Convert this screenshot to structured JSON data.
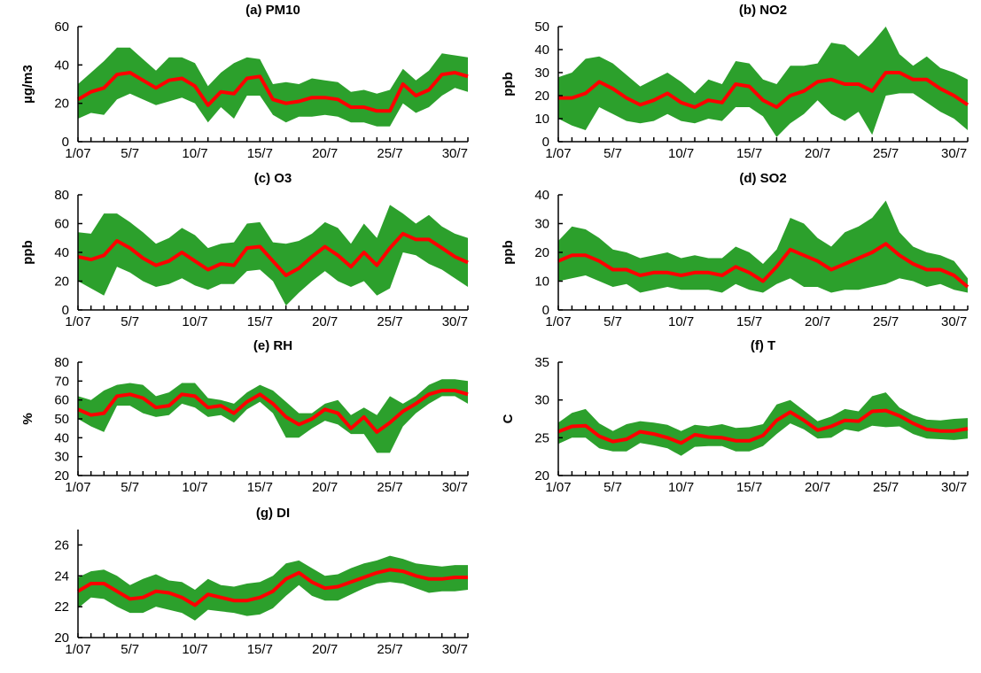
{
  "chart_data": [
    {
      "type": "area",
      "title": "(a)  PM10",
      "ylabel": "µg/m3",
      "ylim": [
        0,
        60
      ],
      "yticks": [
        0,
        20,
        40,
        60
      ],
      "xtick_labels": [
        "1/07",
        "5/7",
        "10/7",
        "15/7",
        "20/7",
        "25/7",
        "30/7"
      ],
      "xtick_days": [
        1,
        5,
        10,
        15,
        20,
        25,
        30
      ],
      "x": [
        1,
        2,
        3,
        4,
        5,
        6,
        7,
        8,
        9,
        10,
        11,
        12,
        13,
        14,
        15,
        16,
        17,
        18,
        19,
        20,
        21,
        22,
        23,
        24,
        25,
        26,
        27,
        28,
        29,
        30,
        31
      ],
      "series": [
        {
          "role": "mean",
          "color": "#ff0000",
          "values": [
            22,
            26,
            28,
            35,
            36,
            32,
            28,
            32,
            33,
            29,
            19,
            26,
            25,
            33,
            34,
            22,
            20,
            21,
            23,
            23,
            22,
            18,
            18,
            16,
            16,
            30,
            24,
            27,
            35,
            36,
            34
          ]
        },
        {
          "role": "upper",
          "values": [
            30,
            36,
            42,
            49,
            49,
            43,
            37,
            44,
            44,
            41,
            29,
            36,
            41,
            44,
            43,
            30,
            31,
            30,
            33,
            32,
            31,
            26,
            27,
            25,
            27,
            38,
            32,
            37,
            46,
            45,
            44
          ]
        },
        {
          "role": "lower",
          "values": [
            12,
            15,
            14,
            22,
            25,
            22,
            19,
            21,
            23,
            20,
            10,
            18,
            12,
            24,
            24,
            14,
            10,
            13,
            13,
            14,
            13,
            10,
            10,
            8,
            8,
            20,
            15,
            18,
            24,
            28,
            26
          ]
        }
      ],
      "fill_color": "#2ca02c"
    },
    {
      "type": "area",
      "title": "(b)  NO2",
      "ylabel": "ppb",
      "ylim": [
        0,
        50
      ],
      "yticks": [
        0,
        10,
        20,
        30,
        40,
        50
      ],
      "xtick_labels": [
        "1/07",
        "5/7",
        "10/7",
        "15/7",
        "20/7",
        "25/7",
        "30/7"
      ],
      "xtick_days": [
        1,
        5,
        10,
        15,
        20,
        25,
        30
      ],
      "x": [
        1,
        2,
        3,
        4,
        5,
        6,
        7,
        8,
        9,
        10,
        11,
        12,
        13,
        14,
        15,
        16,
        17,
        18,
        19,
        20,
        21,
        22,
        23,
        24,
        25,
        26,
        27,
        28,
        29,
        30,
        31
      ],
      "series": [
        {
          "role": "mean",
          "color": "#ff0000",
          "values": [
            19,
            19,
            21,
            26,
            23,
            19,
            16,
            18,
            21,
            17,
            15,
            18,
            17,
            25,
            24,
            18,
            15,
            20,
            22,
            26,
            27,
            25,
            25,
            22,
            30,
            30,
            27,
            27,
            23,
            20,
            16
          ]
        },
        {
          "role": "upper",
          "values": [
            28,
            30,
            36,
            37,
            34,
            29,
            24,
            27,
            30,
            26,
            21,
            27,
            25,
            35,
            34,
            27,
            25,
            33,
            33,
            34,
            43,
            42,
            37,
            43,
            50,
            38,
            33,
            37,
            32,
            30,
            27
          ]
        },
        {
          "role": "lower",
          "values": [
            10,
            7,
            5,
            15,
            12,
            9,
            8,
            9,
            12,
            9,
            8,
            10,
            9,
            15,
            15,
            11,
            2,
            8,
            12,
            18,
            12,
            9,
            13,
            3,
            20,
            21,
            21,
            17,
            13,
            10,
            5
          ]
        }
      ],
      "fill_color": "#2ca02c"
    },
    {
      "type": "area",
      "title": "(c)  O3",
      "ylabel": "ppb",
      "ylim": [
        0,
        80
      ],
      "yticks": [
        0,
        20,
        40,
        60,
        80
      ],
      "xtick_labels": [
        "1/07",
        "5/7",
        "10/7",
        "15/7",
        "20/7",
        "25/7",
        "30/7"
      ],
      "xtick_days": [
        1,
        5,
        10,
        15,
        20,
        25,
        30
      ],
      "x": [
        1,
        2,
        3,
        4,
        5,
        6,
        7,
        8,
        9,
        10,
        11,
        12,
        13,
        14,
        15,
        16,
        17,
        18,
        19,
        20,
        21,
        22,
        23,
        24,
        25,
        26,
        27,
        28,
        29,
        30,
        31
      ],
      "series": [
        {
          "role": "mean",
          "color": "#ff0000",
          "values": [
            37,
            35,
            38,
            48,
            43,
            36,
            31,
            34,
            40,
            34,
            28,
            32,
            31,
            43,
            44,
            34,
            24,
            29,
            37,
            44,
            38,
            30,
            40,
            31,
            43,
            53,
            49,
            49,
            43,
            37,
            33
          ]
        },
        {
          "role": "upper",
          "values": [
            54,
            53,
            67,
            67,
            61,
            54,
            46,
            50,
            57,
            52,
            43,
            46,
            47,
            60,
            61,
            47,
            46,
            48,
            53,
            61,
            57,
            46,
            60,
            50,
            73,
            67,
            60,
            66,
            58,
            53,
            50
          ]
        },
        {
          "role": "lower",
          "values": [
            20,
            15,
            10,
            30,
            26,
            20,
            16,
            18,
            22,
            17,
            14,
            18,
            18,
            27,
            28,
            20,
            3,
            12,
            20,
            27,
            20,
            16,
            20,
            10,
            15,
            40,
            38,
            32,
            28,
            22,
            16
          ]
        }
      ],
      "fill_color": "#2ca02c"
    },
    {
      "type": "area",
      "title": "(d)  SO2",
      "ylabel": "ppb",
      "ylim": [
        0,
        40
      ],
      "yticks": [
        0,
        10,
        20,
        30,
        40
      ],
      "xtick_labels": [
        "1/07",
        "5/7",
        "10/7",
        "15/7",
        "20/7",
        "25/7",
        "30/7"
      ],
      "xtick_days": [
        1,
        5,
        10,
        15,
        20,
        25,
        30
      ],
      "x": [
        1,
        2,
        3,
        4,
        5,
        6,
        7,
        8,
        9,
        10,
        11,
        12,
        13,
        14,
        15,
        16,
        17,
        18,
        19,
        20,
        21,
        22,
        23,
        24,
        25,
        26,
        27,
        28,
        29,
        30,
        31
      ],
      "series": [
        {
          "role": "mean",
          "color": "#ff0000",
          "values": [
            17,
            19,
            19,
            17,
            14,
            14,
            12,
            13,
            13,
            12,
            13,
            13,
            12,
            15,
            13,
            10,
            15,
            21,
            19,
            17,
            14,
            16,
            18,
            20,
            23,
            19,
            16,
            14,
            14,
            12,
            8
          ]
        },
        {
          "role": "upper",
          "values": [
            24,
            29,
            28,
            25,
            21,
            20,
            18,
            19,
            20,
            18,
            19,
            18,
            18,
            22,
            20,
            16,
            21,
            32,
            30,
            25,
            22,
            27,
            29,
            32,
            38,
            27,
            22,
            20,
            19,
            17,
            11
          ]
        },
        {
          "role": "lower",
          "values": [
            10,
            11,
            12,
            10,
            8,
            9,
            6,
            7,
            8,
            7,
            7,
            7,
            6,
            9,
            7,
            6,
            9,
            11,
            8,
            8,
            6,
            7,
            7,
            8,
            9,
            11,
            10,
            8,
            9,
            7,
            6
          ]
        }
      ],
      "fill_color": "#2ca02c"
    },
    {
      "type": "area",
      "title": "(e)  RH",
      "ylabel": "%",
      "ylim": [
        20,
        80
      ],
      "yticks": [
        20,
        30,
        40,
        50,
        60,
        70,
        80
      ],
      "xtick_labels": [
        "1/07",
        "5/7",
        "10/7",
        "15/7",
        "20/7",
        "25/7",
        "30/7"
      ],
      "xtick_days": [
        1,
        5,
        10,
        15,
        20,
        25,
        30
      ],
      "x": [
        1,
        2,
        3,
        4,
        5,
        6,
        7,
        8,
        9,
        10,
        11,
        12,
        13,
        14,
        15,
        16,
        17,
        18,
        19,
        20,
        21,
        22,
        23,
        24,
        25,
        26,
        27,
        28,
        29,
        30,
        31
      ],
      "series": [
        {
          "role": "mean",
          "color": "#ff0000",
          "values": [
            55,
            52,
            53,
            62,
            63,
            61,
            56,
            57,
            63,
            62,
            56,
            57,
            53,
            59,
            63,
            58,
            51,
            47,
            50,
            55,
            53,
            45,
            51,
            43,
            48,
            54,
            58,
            63,
            65,
            65,
            63
          ]
        },
        {
          "role": "upper",
          "values": [
            62,
            60,
            65,
            68,
            69,
            68,
            62,
            64,
            69,
            69,
            61,
            60,
            58,
            64,
            68,
            65,
            59,
            53,
            53,
            58,
            60,
            52,
            56,
            52,
            62,
            58,
            62,
            68,
            71,
            71,
            70
          ]
        },
        {
          "role": "lower",
          "values": [
            50,
            46,
            43,
            57,
            57,
            53,
            51,
            52,
            58,
            56,
            51,
            52,
            48,
            55,
            59,
            53,
            40,
            40,
            45,
            49,
            47,
            42,
            42,
            32,
            32,
            46,
            53,
            58,
            62,
            62,
            58
          ]
        }
      ],
      "fill_color": "#2ca02c"
    },
    {
      "type": "area",
      "title": "(f)  T",
      "ylabel": "C",
      "ylim": [
        20,
        35
      ],
      "yticks": [
        20,
        25,
        30,
        35
      ],
      "xtick_labels": [
        "1/07",
        "5/7",
        "10/7",
        "15/7",
        "20/7",
        "25/7",
        "30/7"
      ],
      "xtick_days": [
        1,
        5,
        10,
        15,
        20,
        25,
        30
      ],
      "x": [
        1,
        2,
        3,
        4,
        5,
        6,
        7,
        8,
        9,
        10,
        11,
        12,
        13,
        14,
        15,
        16,
        17,
        18,
        19,
        20,
        21,
        22,
        23,
        24,
        25,
        26,
        27,
        28,
        29,
        30,
        31
      ],
      "series": [
        {
          "role": "mean",
          "color": "#ff0000",
          "values": [
            25.8,
            26.5,
            26.6,
            25.2,
            24.5,
            24.8,
            25.8,
            25.5,
            25.0,
            24.3,
            25.4,
            25.1,
            25.0,
            24.6,
            24.6,
            25.3,
            27.3,
            28.4,
            27.3,
            26.0,
            26.5,
            27.3,
            27.2,
            28.5,
            28.6,
            27.9,
            26.9,
            26.1,
            25.9,
            25.9,
            26.2
          ]
        },
        {
          "role": "upper",
          "values": [
            27.0,
            28.3,
            28.8,
            26.9,
            25.9,
            26.8,
            27.2,
            27.0,
            26.7,
            25.9,
            26.7,
            26.5,
            26.8,
            26.3,
            26.4,
            26.8,
            29.4,
            30.0,
            28.6,
            27.2,
            27.8,
            28.8,
            28.5,
            30.5,
            31.0,
            29.0,
            28.0,
            27.4,
            27.3,
            27.5,
            27.6
          ]
        },
        {
          "role": "lower",
          "values": [
            24.2,
            25.0,
            25.0,
            23.6,
            23.2,
            23.2,
            24.3,
            24.0,
            23.6,
            22.6,
            23.8,
            23.9,
            23.9,
            23.2,
            23.2,
            23.9,
            25.5,
            26.9,
            26.1,
            24.9,
            25.0,
            26.1,
            25.8,
            26.6,
            26.4,
            26.5,
            25.5,
            24.9,
            24.8,
            24.7,
            24.9
          ]
        }
      ],
      "fill_color": "#2ca02c"
    },
    {
      "type": "area",
      "title": "(g)  DI",
      "ylabel": "",
      "ylim": [
        20,
        27
      ],
      "yticks": [
        20,
        22,
        24,
        26
      ],
      "xtick_labels": [
        "1/07",
        "5/7",
        "10/7",
        "15/7",
        "20/7",
        "25/7",
        "30/7"
      ],
      "xtick_days": [
        1,
        5,
        10,
        15,
        20,
        25,
        30
      ],
      "x": [
        1,
        2,
        3,
        4,
        5,
        6,
        7,
        8,
        9,
        10,
        11,
        12,
        13,
        14,
        15,
        16,
        17,
        18,
        19,
        20,
        21,
        22,
        23,
        24,
        25,
        26,
        27,
        28,
        29,
        30,
        31
      ],
      "series": [
        {
          "role": "mean",
          "color": "#ff0000",
          "values": [
            23.0,
            23.5,
            23.5,
            23.0,
            22.5,
            22.6,
            23.0,
            22.9,
            22.6,
            22.1,
            22.8,
            22.6,
            22.4,
            22.4,
            22.6,
            23.0,
            23.8,
            24.2,
            23.6,
            23.2,
            23.3,
            23.6,
            23.9,
            24.2,
            24.4,
            24.3,
            24.0,
            23.8,
            23.8,
            23.9,
            23.9
          ]
        },
        {
          "role": "upper",
          "values": [
            23.9,
            24.3,
            24.4,
            24.0,
            23.4,
            23.8,
            24.1,
            23.7,
            23.6,
            23.1,
            23.8,
            23.4,
            23.3,
            23.5,
            23.6,
            24.0,
            24.8,
            25.0,
            24.5,
            24.0,
            24.1,
            24.5,
            24.8,
            25.0,
            25.3,
            25.1,
            24.8,
            24.7,
            24.6,
            24.7,
            24.7
          ]
        },
        {
          "role": "lower",
          "values": [
            21.9,
            22.6,
            22.5,
            22.0,
            21.6,
            21.6,
            22.0,
            21.8,
            21.6,
            21.1,
            21.8,
            21.7,
            21.6,
            21.4,
            21.5,
            21.9,
            22.7,
            23.4,
            22.7,
            22.4,
            22.4,
            22.8,
            23.2,
            23.5,
            23.6,
            23.5,
            23.2,
            22.9,
            23.0,
            23.0,
            23.1
          ]
        }
      ],
      "fill_color": "#2ca02c"
    }
  ]
}
